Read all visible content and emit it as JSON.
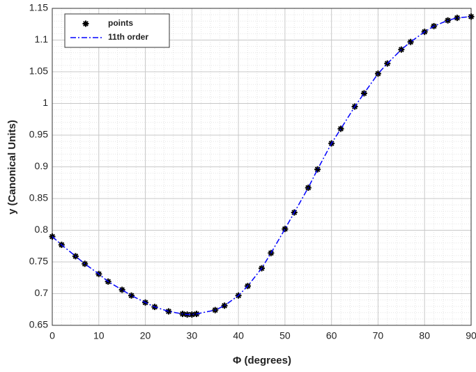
{
  "chart_data": {
    "type": "line",
    "x": [
      0,
      2,
      5,
      7,
      10,
      12,
      15,
      17,
      20,
      22,
      25,
      28,
      29,
      30,
      31,
      35,
      37,
      40,
      42,
      45,
      47,
      50,
      52,
      55,
      57,
      60,
      62,
      65,
      67,
      70,
      72,
      75,
      77,
      80,
      82,
      85,
      87,
      90
    ],
    "series": [
      {
        "name": "points",
        "color": "#000000",
        "marker": "star",
        "values": [
          0.79,
          0.777,
          0.759,
          0.747,
          0.731,
          0.719,
          0.706,
          0.697,
          0.686,
          0.679,
          0.672,
          0.668,
          0.667,
          0.667,
          0.668,
          0.674,
          0.681,
          0.697,
          0.712,
          0.74,
          0.764,
          0.802,
          0.828,
          0.867,
          0.896,
          0.937,
          0.96,
          0.995,
          1.016,
          1.047,
          1.063,
          1.085,
          1.097,
          1.113,
          1.122,
          1.131,
          1.135,
          1.137
        ]
      },
      {
        "name": "11th order",
        "color": "#0000ff",
        "marker": "dashdot",
        "values": [
          0.79,
          0.777,
          0.759,
          0.747,
          0.731,
          0.719,
          0.706,
          0.697,
          0.686,
          0.679,
          0.672,
          0.668,
          0.667,
          0.667,
          0.668,
          0.674,
          0.681,
          0.697,
          0.712,
          0.74,
          0.764,
          0.802,
          0.828,
          0.867,
          0.896,
          0.937,
          0.96,
          0.995,
          1.016,
          1.047,
          1.063,
          1.085,
          1.097,
          1.113,
          1.122,
          1.131,
          1.135,
          1.137
        ]
      }
    ],
    "x_label": "Φ (degrees)",
    "y_label": "y (Canonical Units)",
    "xlim": [
      0,
      90
    ],
    "xticks": [
      0,
      10,
      20,
      30,
      40,
      50,
      60,
      70,
      80,
      90
    ],
    "ylim": [
      0.65,
      1.15
    ],
    "yticks": [
      0.65,
      0.7,
      0.75,
      0.8,
      0.85,
      0.9,
      0.95,
      1,
      1.05,
      1.1,
      1.15
    ],
    "grid": true,
    "minor_grid": true,
    "legend": "upper left"
  }
}
